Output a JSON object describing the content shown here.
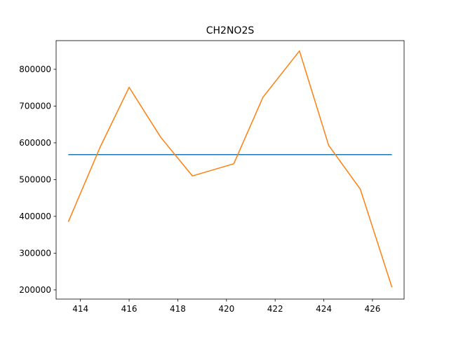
{
  "chart_data": {
    "type": "line",
    "title": "CH2NO2S",
    "xlabel": "",
    "ylabel": "",
    "xlim": [
      413.0,
      427.3
    ],
    "ylim": [
      175000,
      878000
    ],
    "x_ticks": [
      414,
      416,
      418,
      420,
      422,
      424,
      426
    ],
    "y_ticks": [
      200000,
      300000,
      400000,
      500000,
      600000,
      700000,
      800000
    ],
    "grid": false,
    "legend": "none",
    "series": [
      {
        "color": "#1f77b4",
        "points": [
          {
            "x": 413.5,
            "y": 568000
          },
          {
            "x": 426.8,
            "y": 568000
          }
        ]
      },
      {
        "color": "#ff7f0e",
        "points": [
          {
            "x": 413.5,
            "y": 385000
          },
          {
            "x": 414.8,
            "y": 587000
          },
          {
            "x": 416.0,
            "y": 751000
          },
          {
            "x": 417.3,
            "y": 615000
          },
          {
            "x": 418.6,
            "y": 510000
          },
          {
            "x": 420.3,
            "y": 543000
          },
          {
            "x": 421.5,
            "y": 724000
          },
          {
            "x": 423.0,
            "y": 850000
          },
          {
            "x": 424.2,
            "y": 593000
          },
          {
            "x": 425.5,
            "y": 474000
          },
          {
            "x": 426.8,
            "y": 207000
          }
        ]
      }
    ]
  }
}
